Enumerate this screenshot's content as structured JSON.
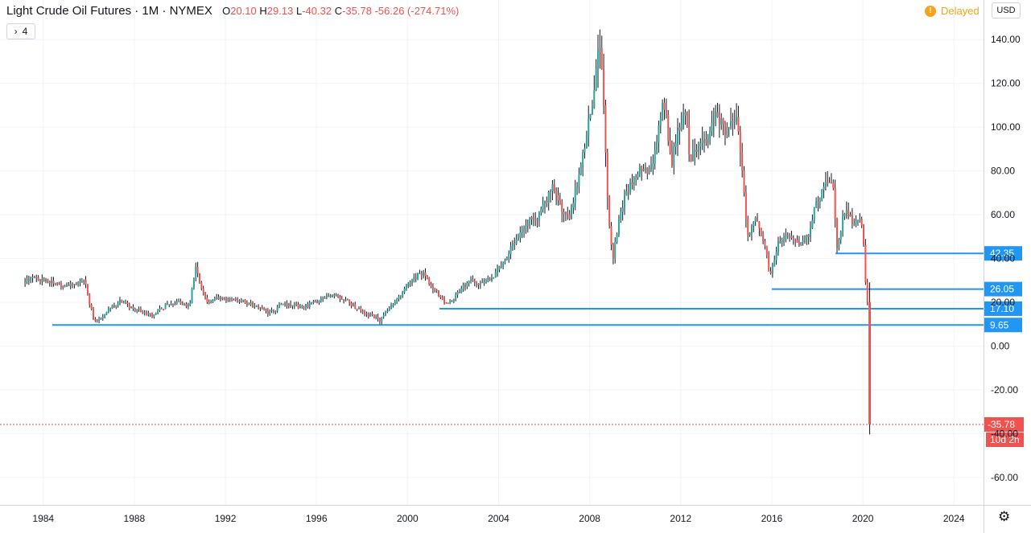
{
  "header": {
    "title": "Light Crude Oil Futures · 1M · NYMEX",
    "open_label": "O",
    "open": "20.10",
    "high_label": "H",
    "high": "29.13",
    "low_label": "L",
    "low": "-40.32",
    "close_label": "C",
    "close": "-35.78",
    "change": "-56.26 (-274.71%)"
  },
  "collapse_button": {
    "icon": "chevron-right-icon",
    "count": "4"
  },
  "status": {
    "delayed_label": "Delayed",
    "delayed_icon": "!"
  },
  "currency": "USD",
  "countdown": "10d 2h",
  "colors": {
    "up": "#26a69a",
    "down": "#ef5350",
    "hline": "#2196f3",
    "grid": "#f0f3fa",
    "delayed": "#f7a21b"
  },
  "chart_data": {
    "type": "candlestick",
    "title": "Light Crude Oil Futures",
    "interval": "1M",
    "exchange": "NYMEX",
    "x_ticks": [
      "1984",
      "1988",
      "1992",
      "1996",
      "2000",
      "2004",
      "2008",
      "2012",
      "2016",
      "2020",
      "2024"
    ],
    "y_ticks": [
      "140.00",
      "120.00",
      "100.00",
      "80.00",
      "60.00",
      "40.00",
      "20.00",
      "0.00",
      "-20.00",
      "-40.00",
      "-60.00"
    ],
    "xlim": [
      1982.1,
      2025.3
    ],
    "ylim": [
      -72.5,
      150
    ],
    "grid": true,
    "last_price": -35.78,
    "horizontal_lines": [
      {
        "value": 42.35,
        "label": "42.35",
        "start": 2018.8
      },
      {
        "value": 26.05,
        "label": "26.05",
        "start": 2016.0
      },
      {
        "value": 17.1,
        "label": "17.10",
        "start": 2001.4
      },
      {
        "value": 9.65,
        "label": "9.65",
        "start": 1984.4
      }
    ],
    "price_path": [
      [
        1983.2,
        29
      ],
      [
        1983.5,
        31
      ],
      [
        1984.0,
        30
      ],
      [
        1984.5,
        29
      ],
      [
        1985.0,
        27
      ],
      [
        1985.5,
        28
      ],
      [
        1985.9,
        30
      ],
      [
        1986.1,
        20
      ],
      [
        1986.3,
        12
      ],
      [
        1986.6,
        13
      ],
      [
        1987.0,
        17
      ],
      [
        1987.5,
        21
      ],
      [
        1988.0,
        17
      ],
      [
        1988.5,
        16
      ],
      [
        1988.9,
        14
      ],
      [
        1989.5,
        19
      ],
      [
        1990.0,
        20
      ],
      [
        1990.5,
        18
      ],
      [
        1990.8,
        38
      ],
      [
        1991.0,
        27
      ],
      [
        1991.3,
        20
      ],
      [
        1991.8,
        22
      ],
      [
        1992.5,
        21
      ],
      [
        1993.0,
        20
      ],
      [
        1993.7,
        17
      ],
      [
        1994.0,
        15
      ],
      [
        1994.6,
        19
      ],
      [
        1995.5,
        18
      ],
      [
        1996.3,
        21
      ],
      [
        1996.9,
        24
      ],
      [
        1997.5,
        20
      ],
      [
        1998.2,
        15
      ],
      [
        1998.9,
        12
      ],
      [
        1999.5,
        20
      ],
      [
        2000.0,
        27
      ],
      [
        2000.5,
        32
      ],
      [
        2000.8,
        34
      ],
      [
        2001.0,
        29
      ],
      [
        2001.7,
        20
      ],
      [
        2001.9,
        19
      ],
      [
        2002.5,
        27
      ],
      [
        2002.9,
        30
      ],
      [
        2003.3,
        28
      ],
      [
        2003.9,
        32
      ],
      [
        2004.5,
        42
      ],
      [
        2004.9,
        50
      ],
      [
        2005.5,
        58
      ],
      [
        2005.9,
        60
      ],
      [
        2006.5,
        74
      ],
      [
        2006.9,
        61
      ],
      [
        2007.2,
        58
      ],
      [
        2007.6,
        78
      ],
      [
        2007.9,
        95
      ],
      [
        2008.2,
        110
      ],
      [
        2008.5,
        140
      ],
      [
        2008.7,
        110
      ],
      [
        2008.9,
        60
      ],
      [
        2009.1,
        40
      ],
      [
        2009.4,
        60
      ],
      [
        2009.7,
        70
      ],
      [
        2010.2,
        80
      ],
      [
        2010.7,
        80
      ],
      [
        2011.0,
        90
      ],
      [
        2011.3,
        113
      ],
      [
        2011.7,
        85
      ],
      [
        2012.0,
        100
      ],
      [
        2012.3,
        105
      ],
      [
        2012.5,
        85
      ],
      [
        2012.8,
        90
      ],
      [
        2013.3,
        95
      ],
      [
        2013.7,
        107
      ],
      [
        2014.0,
        97
      ],
      [
        2014.5,
        105
      ],
      [
        2014.8,
        80
      ],
      [
        2015.0,
        50
      ],
      [
        2015.4,
        60
      ],
      [
        2015.8,
        45
      ],
      [
        2016.0,
        32
      ],
      [
        2016.4,
        48
      ],
      [
        2016.8,
        50
      ],
      [
        2017.3,
        47
      ],
      [
        2017.7,
        50
      ],
      [
        2018.0,
        64
      ],
      [
        2018.5,
        74
      ],
      [
        2018.8,
        72
      ],
      [
        2018.95,
        45
      ],
      [
        2019.3,
        63
      ],
      [
        2019.7,
        55
      ],
      [
        2019.9,
        60
      ],
      [
        2020.1,
        51
      ],
      [
        2020.25,
        20
      ]
    ],
    "last_candle": {
      "x": 2020.3,
      "open": 20.1,
      "high": 29.13,
      "low": -40.32,
      "close": -35.78
    }
  }
}
